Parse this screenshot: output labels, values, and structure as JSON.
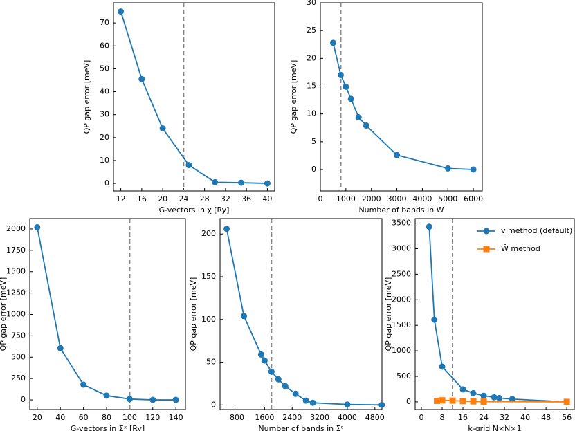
{
  "chart_data": [
    {
      "type": "line",
      "xlabel": "G-vectors in χ [Ry]",
      "ylabel": "QP gap error [meV]",
      "xlim": [
        10.6,
        41.4
      ],
      "ylim": [
        -3.3,
        78.8
      ],
      "xticks": [
        12,
        16,
        20,
        24,
        28,
        32,
        36,
        40
      ],
      "yticks": [
        0,
        10,
        20,
        30,
        40,
        50,
        60,
        70
      ],
      "vline": 24,
      "series": [
        {
          "color": "#1f77b4",
          "marker": "circle",
          "x": [
            12,
            16,
            20,
            25,
            30,
            35,
            40
          ],
          "values": [
            75,
            45.5,
            24,
            8,
            0.5,
            0.3,
            0
          ]
        }
      ]
    },
    {
      "type": "line",
      "xlabel": "Number of bands in W",
      "ylabel": "QP gap error [meV]",
      "xlim": [
        0,
        6350
      ],
      "ylim": [
        -3.86,
        30
      ],
      "xticks": [
        0,
        1000,
        2000,
        3000,
        4000,
        5000,
        6000
      ],
      "yticks": [
        0,
        5,
        10,
        15,
        20,
        25,
        30
      ],
      "vline": 800,
      "series": [
        {
          "color": "#1f77b4",
          "marker": "circle",
          "x": [
            500,
            800,
            1000,
            1200,
            1500,
            1800,
            3000,
            5000,
            6000
          ],
          "values": [
            22.8,
            17,
            14.9,
            12.7,
            9.4,
            7.9,
            2.6,
            0.2,
            0
          ]
        }
      ]
    },
    {
      "type": "line",
      "xlabel": "G-vectors in Σˣ [Ry]",
      "ylabel": "QP gap error [meV]",
      "xlim": [
        13.5,
        148.3
      ],
      "ylim": [
        -113,
        2121
      ],
      "xticks": [
        20,
        40,
        60,
        80,
        100,
        120,
        140
      ],
      "yticks": [
        0,
        250,
        500,
        750,
        1000,
        1250,
        1500,
        1750,
        2000
      ],
      "vline": 100,
      "series": [
        {
          "color": "#1f77b4",
          "marker": "circle",
          "x": [
            20,
            40,
            60,
            80,
            100,
            120,
            140
          ],
          "values": [
            2020,
            605,
            178,
            50,
            10,
            0,
            0
          ]
        }
      ]
    },
    {
      "type": "line",
      "xlabel": "Number of bands in Σᶜ",
      "ylabel": "QP gap error [meV]",
      "xlim": [
        308,
        5005
      ],
      "ylim": [
        -5.4,
        218
      ],
      "xticks": [
        800,
        1600,
        2400,
        3200,
        4000,
        4800
      ],
      "yticks": [
        0,
        50,
        100,
        150,
        200
      ],
      "vline": 1800,
      "series": [
        {
          "color": "#1f77b4",
          "marker": "circle",
          "x": [
            500,
            1000,
            1500,
            1600,
            1800,
            2000,
            2200,
            2500,
            2800,
            3000,
            4000,
            5000
          ],
          "values": [
            206,
            104,
            59,
            52,
            39,
            30,
            22,
            13,
            5,
            2.5,
            0.5,
            0
          ]
        }
      ]
    },
    {
      "type": "line",
      "xlabel": "k-grid N×N×1",
      "ylabel": "QP gap error [meV]",
      "xlim": [
        -2.4,
        58.9
      ],
      "ylim": [
        -150,
        3589
      ],
      "xticks": [
        0,
        8,
        16,
        24,
        32,
        40,
        48,
        56
      ],
      "yticks": [
        0,
        500,
        1000,
        1500,
        2000,
        2500,
        3000,
        3500
      ],
      "vline": 12,
      "legend": "upper right",
      "series": [
        {
          "name": "v̄ method (default)",
          "color": "#1f77b4",
          "marker": "circle",
          "x": [
            3,
            5,
            8,
            16,
            20,
            24,
            28,
            30,
            35,
            56
          ],
          "values": [
            3430,
            1610,
            690,
            245,
            170,
            120,
            90,
            75,
            55,
            0
          ]
        },
        {
          "name": "W̄ method",
          "color": "#ff7f0e",
          "marker": "square",
          "x": [
            6,
            8,
            12,
            16,
            20,
            24,
            56
          ],
          "values": [
            20,
            30,
            25,
            15,
            10,
            5,
            0
          ]
        }
      ]
    }
  ]
}
